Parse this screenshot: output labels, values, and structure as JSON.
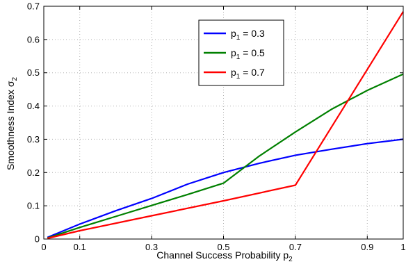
{
  "chart_data": {
    "type": "line",
    "xlabel": "Channel Success Probability p",
    "xlabel_sub": "2",
    "ylabel": "Smoothness Index σ",
    "ylabel_sub": "2",
    "xlim": [
      0,
      1
    ],
    "ylim": [
      0,
      0.7
    ],
    "xticks": [
      0,
      0.1,
      0.3,
      0.5,
      0.7,
      0.9,
      1
    ],
    "xtick_labels": [
      "0",
      "0.1",
      "0.3",
      "0.5",
      "0.7",
      "0.9",
      "1"
    ],
    "yticks": [
      0,
      0.1,
      0.2,
      0.3,
      0.4,
      0.5,
      0.6,
      0.7
    ],
    "ytick_labels": [
      "0",
      "0.1",
      "0.2",
      "0.3",
      "0.4",
      "0.5",
      "0.6",
      "0.7"
    ],
    "grid": true,
    "legend_position": "top-center",
    "series": [
      {
        "name": "p",
        "name_sub": "1",
        "name_suffix": " = 0.3",
        "color": "#0000ff",
        "x": [
          0.01,
          0.1,
          0.2,
          0.3,
          0.4,
          0.5,
          0.6,
          0.7,
          0.8,
          0.9,
          1.0
        ],
        "y": [
          0.005,
          0.045,
          0.085,
          0.122,
          0.165,
          0.2,
          0.228,
          0.252,
          0.27,
          0.287,
          0.3
        ]
      },
      {
        "name": "p",
        "name_sub": "1",
        "name_suffix": " = 0.5",
        "color": "#008000",
        "x": [
          0.01,
          0.1,
          0.2,
          0.3,
          0.4,
          0.5,
          0.6,
          0.7,
          0.8,
          0.9,
          1.0
        ],
        "y": [
          0.003,
          0.035,
          0.068,
          0.101,
          0.134,
          0.168,
          0.25,
          0.322,
          0.39,
          0.447,
          0.496
        ]
      },
      {
        "name": "p",
        "name_sub": "1",
        "name_suffix": " = 0.7",
        "color": "#ff0000",
        "x": [
          0.01,
          0.1,
          0.3,
          0.5,
          0.7,
          1.0
        ],
        "y": [
          0.002,
          0.025,
          0.07,
          0.115,
          0.162,
          0.684
        ]
      }
    ]
  }
}
